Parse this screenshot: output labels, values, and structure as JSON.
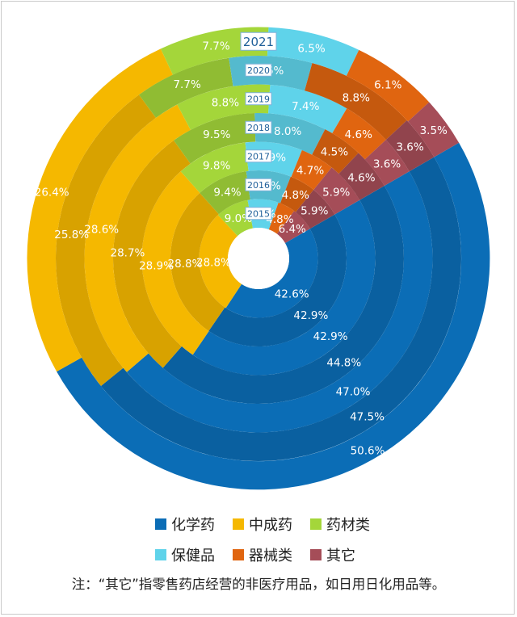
{
  "chart_data": {
    "type": "donut",
    "years": [
      "2015",
      "2016",
      "2017",
      "2018",
      "2019",
      "2020",
      "2021"
    ],
    "series": [
      {
        "name": "化学药",
        "color": "#0b6db6",
        "values": [
          42.6,
          42.9,
          42.9,
          44.8,
          47.0,
          47.5,
          50.6
        ]
      },
      {
        "name": "中成药",
        "color": "#f5b800",
        "values": [
          28.8,
          28.8,
          28.9,
          28.7,
          28.6,
          25.8,
          26.4
        ]
      },
      {
        "name": "药材类",
        "color": "#a4d63a",
        "values": [
          9.0,
          9.4,
          9.8,
          9.5,
          8.8,
          7.7,
          7.7
        ]
      },
      {
        "name": "保健品",
        "color": "#5fd3ea",
        "values": [
          8.4,
          8.2,
          7.9,
          8.0,
          7.4,
          6.6,
          6.5
        ]
      },
      {
        "name": "器械类",
        "color": "#e06510",
        "values": [
          4.8,
          4.8,
          4.7,
          4.5,
          4.6,
          8.8,
          6.1
        ]
      },
      {
        "name": "其它",
        "color": "#a54d58",
        "values": [
          6.4,
          5.9,
          5.9,
          4.6,
          3.6,
          3.6,
          3.5
        ]
      }
    ],
    "value_labels": [
      [
        "42.6%",
        "42.9%",
        "42.9%",
        "44.8%",
        "47.0%",
        "47.5%",
        "50.6%"
      ],
      [
        "28.8%",
        "28.8%",
        "28.9%",
        "28.7%",
        "28.6%",
        "25.8%",
        "26.4%"
      ],
      [
        "9.0%",
        "9.4%",
        "9.8%",
        "9.5%",
        "8.8%",
        "7.7%",
        "7.7%"
      ],
      [
        "8.4%",
        "8.2%",
        "7.9%",
        "8.0%",
        "7.4%",
        "6.6%",
        "6.5%"
      ],
      [
        "4.8%",
        "4.8%",
        "4.7%",
        "4.5%",
        "4.6%",
        "8.8%",
        "6.1%"
      ],
      [
        "6.4%",
        "5.9%",
        "5.9%",
        "4.6%",
        "3.6%",
        "3.6%",
        "3.5%"
      ]
    ]
  },
  "legend": {
    "items": [
      {
        "label": "化学药",
        "color": "#0b6db6"
      },
      {
        "label": "中成药",
        "color": "#f5b800"
      },
      {
        "label": "药材类",
        "color": "#a4d63a"
      },
      {
        "label": "保健品",
        "color": "#5fd3ea"
      },
      {
        "label": "器械类",
        "color": "#e06510"
      },
      {
        "label": "其它",
        "color": "#a54d58"
      }
    ]
  },
  "note": "注：“其它”指零售药店经营的非医疗用品，如日用日化用品等。"
}
